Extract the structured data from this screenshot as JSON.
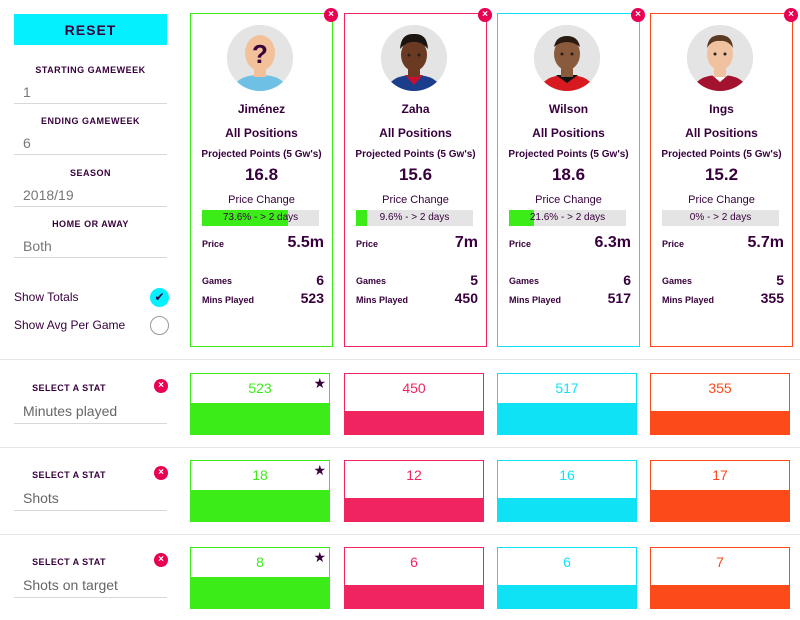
{
  "sidebar": {
    "reset_label": "RESET",
    "starting_gameweek": {
      "label": "STARTING GAMEWEEK",
      "value": "1"
    },
    "ending_gameweek": {
      "label": "ENDING GAMEWEEK",
      "value": "6"
    },
    "season": {
      "label": "SEASON",
      "value": "2018/19"
    },
    "home_away": {
      "label": "HOME OR AWAY",
      "value": "Both"
    },
    "show_totals": {
      "label": "Show Totals",
      "checked": true
    },
    "show_avg": {
      "label": "Show Avg Per Game",
      "checked": false
    },
    "checkmark": "✔"
  },
  "close_glyph": "×",
  "star_glyph": "★",
  "players": [
    {
      "name": "Jiménez",
      "positions": "All Positions",
      "pp_label": "Projected Points (5 Gw's)",
      "projected": "16.8",
      "pc_label": "Price Change",
      "price_change_text": "73.6% - > 2 days",
      "price_change_pct": 73.6,
      "price_label": "Price",
      "price": "5.5m",
      "games_label": "Games",
      "games": "6",
      "mins_label": "Mins Played",
      "mins": "523",
      "color": "#3cec19",
      "avatar": "unknown"
    },
    {
      "name": "Zaha",
      "positions": "All Positions",
      "pp_label": "Projected Points (5 Gw's)",
      "projected": "15.6",
      "pc_label": "Price Change",
      "price_change_text": "9.6% - > 2 days",
      "price_change_pct": 9.6,
      "price_label": "Price",
      "price": "7m",
      "games_label": "Games",
      "games": "5",
      "mins_label": "Mins Played",
      "mins": "450",
      "color": "#f0245f",
      "avatar": "zaha"
    },
    {
      "name": "Wilson",
      "positions": "All Positions",
      "pp_label": "Projected Points (5 Gw's)",
      "projected": "18.6",
      "pc_label": "Price Change",
      "price_change_text": "21.6% - > 2 days",
      "price_change_pct": 21.6,
      "price_label": "Price",
      "price": "6.3m",
      "games_label": "Games",
      "games": "6",
      "mins_label": "Mins Played",
      "mins": "517",
      "color": "#10e2f5",
      "avatar": "wilson"
    },
    {
      "name": "Ings",
      "positions": "All Positions",
      "pp_label": "Projected Points (5 Gw's)",
      "projected": "15.2",
      "pc_label": "Price Change",
      "price_change_text": "0% - > 2 days",
      "price_change_pct": 0,
      "price_label": "Price",
      "price": "5.7m",
      "games_label": "Games",
      "games": "5",
      "mins_label": "Mins Played",
      "mins": "355",
      "color": "#fc4a1a",
      "avatar": "ings"
    }
  ],
  "stats": [
    {
      "label": "SELECT A STAT",
      "name": "Minutes played",
      "values": [
        "523",
        "450",
        "517",
        "355"
      ],
      "fill_fraction": [
        0.52,
        0.38,
        0.52,
        0.38
      ],
      "best": 0
    },
    {
      "label": "SELECT A STAT",
      "name": "Shots",
      "values": [
        "18",
        "12",
        "16",
        "17"
      ],
      "fill_fraction": [
        0.52,
        0.38,
        0.38,
        0.52
      ],
      "best": 0
    },
    {
      "label": "SELECT A STAT",
      "name": "Shots on target",
      "values": [
        "8",
        "6",
        "6",
        "7"
      ],
      "fill_fraction": [
        0.52,
        0.38,
        0.38,
        0.38
      ],
      "best": 0
    }
  ]
}
